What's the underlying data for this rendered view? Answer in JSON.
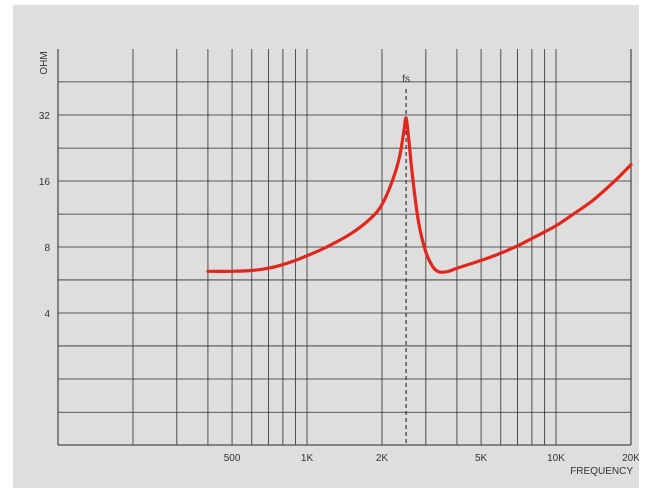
{
  "chart_data": {
    "type": "line",
    "title": "",
    "xlabel": "FREQUENCY",
    "ylabel": "OHM",
    "x_scale": "log",
    "y_scale": "log",
    "xlim": [
      100,
      20000
    ],
    "ylim": [
      1,
      64
    ],
    "x_grid": [
      200,
      300,
      400,
      500,
      600,
      700,
      800,
      900,
      1000,
      2000,
      3000,
      4000,
      5000,
      6000,
      7000,
      8000,
      9000,
      10000
    ],
    "x_ticks": [
      {
        "value": 500,
        "label": "500"
      },
      {
        "value": 1000,
        "label": "1K"
      },
      {
        "value": 2000,
        "label": "2K"
      },
      {
        "value": 5000,
        "label": "5K"
      },
      {
        "value": 10000,
        "label": "10K"
      },
      {
        "value": 20000,
        "label": "20K"
      }
    ],
    "y_ticks": [
      {
        "value": 4,
        "label": "4"
      },
      {
        "value": 8,
        "label": "8"
      },
      {
        "value": 16,
        "label": "16"
      },
      {
        "value": 32,
        "label": "32"
      }
    ],
    "y_grid": [
      1.41,
      2,
      2.83,
      4,
      5.66,
      8,
      11.3,
      16,
      22.6,
      32,
      45.3
    ],
    "grid": true,
    "annotations": [
      {
        "label": "fs",
        "x": 2500,
        "style": "dashed-vertical"
      }
    ],
    "series": [
      {
        "color": "#e2261c",
        "points": [
          [
            400,
            6.2
          ],
          [
            500,
            6.2
          ],
          [
            600,
            6.25
          ],
          [
            700,
            6.4
          ],
          [
            800,
            6.65
          ],
          [
            900,
            6.95
          ],
          [
            1000,
            7.3
          ],
          [
            1200,
            8.0
          ],
          [
            1500,
            9.2
          ],
          [
            1800,
            10.8
          ],
          [
            2000,
            12.5
          ],
          [
            2200,
            16.0
          ],
          [
            2350,
            20.5
          ],
          [
            2450,
            27.0
          ],
          [
            2500,
            31.0
          ],
          [
            2560,
            25.0
          ],
          [
            2650,
            17.0
          ],
          [
            2800,
            10.5
          ],
          [
            3000,
            7.6
          ],
          [
            3200,
            6.5
          ],
          [
            3400,
            6.15
          ],
          [
            3700,
            6.2
          ],
          [
            4000,
            6.4
          ],
          [
            5000,
            6.95
          ],
          [
            6000,
            7.5
          ],
          [
            7000,
            8.1
          ],
          [
            8000,
            8.75
          ],
          [
            10000,
            10.0
          ],
          [
            12000,
            11.5
          ],
          [
            14000,
            13.0
          ],
          [
            17000,
            15.8
          ],
          [
            20000,
            19.0
          ]
        ]
      }
    ]
  }
}
